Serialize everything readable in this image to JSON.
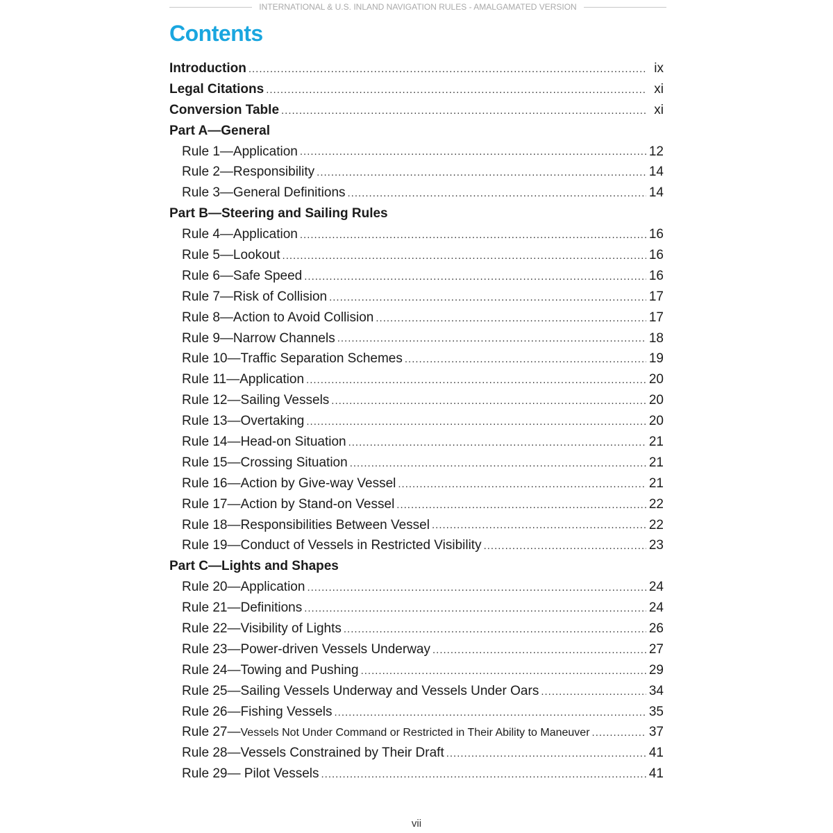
{
  "running_header": "INTERNATIONAL & U.S. INLAND NAVIGATION RULES - AMALGAMATED VERSION",
  "title": "Contents",
  "accent_color": "#1aa6df",
  "entries": [
    {
      "label": "Introduction",
      "page": "ix",
      "type": "top"
    },
    {
      "label": "Legal Citations",
      "page": "xi",
      "type": "top"
    },
    {
      "label": "Conversion Table",
      "page": "xi",
      "type": "top"
    },
    {
      "label": "Part A—General",
      "page": "",
      "type": "part"
    },
    {
      "label": "Rule 1—Application",
      "page": "12",
      "type": "rule"
    },
    {
      "label": "Rule 2—Responsibility",
      "page": "14",
      "type": "rule"
    },
    {
      "label": "Rule 3—General Definitions",
      "page": "14",
      "type": "rule"
    },
    {
      "label": "Part B—Steering and Sailing Rules",
      "page": "",
      "type": "part"
    },
    {
      "label": "Rule 4—Application",
      "page": "16",
      "type": "rule"
    },
    {
      "label": "Rule 5—Lookout",
      "page": "16",
      "type": "rule"
    },
    {
      "label": "Rule 6—Safe Speed",
      "page": "16",
      "type": "rule"
    },
    {
      "label": "Rule 7—Risk of Collision",
      "page": "17",
      "type": "rule"
    },
    {
      "label": "Rule 8—Action to Avoid Collision",
      "page": "17",
      "type": "rule"
    },
    {
      "label": "Rule 9—Narrow Channels",
      "page": "18",
      "type": "rule"
    },
    {
      "label": "Rule 10—Traffic Separation Schemes",
      "page": "19",
      "type": "rule"
    },
    {
      "label": "Rule 11—Application",
      "page": "20",
      "type": "rule"
    },
    {
      "label": "Rule 12—Sailing Vessels",
      "page": "20",
      "type": "rule"
    },
    {
      "label": "Rule 13—Overtaking",
      "page": "20",
      "type": "rule"
    },
    {
      "label": "Rule 14—Head-on Situation",
      "page": "21",
      "type": "rule"
    },
    {
      "label": "Rule 15—Crossing Situation",
      "page": "21",
      "type": "rule"
    },
    {
      "label": "Rule 16—Action by Give-way Vessel",
      "page": "21",
      "type": "rule"
    },
    {
      "label": "Rule 17—Action by Stand-on Vessel",
      "page": "22",
      "type": "rule"
    },
    {
      "label": "Rule 18—Responsibilities Between Vessel",
      "page": "22",
      "type": "rule"
    },
    {
      "label": "Rule 19—Conduct of Vessels in Restricted Visibility",
      "page": "23",
      "type": "rule"
    },
    {
      "label": "Part C—Lights and Shapes",
      "page": "",
      "type": "part"
    },
    {
      "label": "Rule 20—Application",
      "page": "24",
      "type": "rule"
    },
    {
      "label": "Rule 21—Definitions",
      "page": "24",
      "type": "rule"
    },
    {
      "label": "Rule 22—Visibility of Lights",
      "page": "26",
      "type": "rule"
    },
    {
      "label": "Rule 23—Power-driven Vessels Underway",
      "page": "27",
      "type": "rule"
    },
    {
      "label": "Rule 24—Towing and Pushing",
      "page": "29",
      "type": "rule"
    },
    {
      "label": "Rule 25—Sailing Vessels Underway and Vessels Under Oars",
      "page": "34",
      "type": "rule"
    },
    {
      "label": "Rule 26—Fishing Vessels",
      "page": "35",
      "type": "rule"
    },
    {
      "label": "Rule 27—",
      "label_small": "Vessels Not Under Command or Restricted in Their Ability to Maneuver",
      "page": "37",
      "type": "rule"
    },
    {
      "label": "Rule 28—Vessels Constrained by Their Draft",
      "page": "41",
      "type": "rule"
    },
    {
      "label": "Rule 29— Pilot Vessels",
      "page": "41",
      "type": "rule"
    }
  ],
  "folio": "vii"
}
